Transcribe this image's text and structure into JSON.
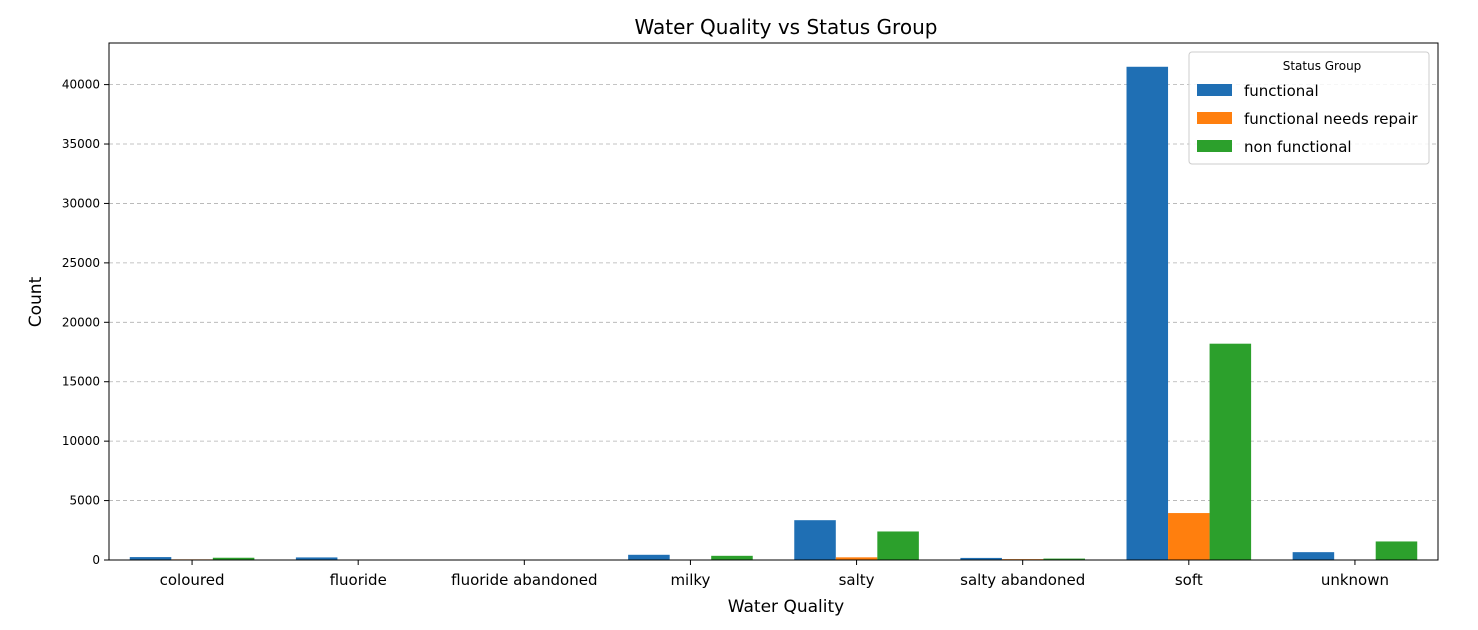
{
  "chart_data": {
    "type": "bar",
    "title": "Water Quality vs Status Group",
    "xlabel": "Water Quality",
    "ylabel": "Count",
    "categories": [
      "coloured",
      "fluoride",
      "fluoride abandoned",
      "milky",
      "salty",
      "salty abandoned",
      "soft",
      "unknown"
    ],
    "series": [
      {
        "name": "functional",
        "color": "#1f6fb4",
        "values": [
          246,
          217,
          12,
          438,
          3350,
          176,
          41500,
          660
        ]
      },
      {
        "name": "functional needs repair",
        "color": "#ff7f0e",
        "values": [
          54,
          13,
          0,
          14,
          225,
          72,
          3950,
          30
        ]
      },
      {
        "name": "non functional",
        "color": "#2ca02c",
        "values": [
          190,
          20,
          5,
          352,
          2400,
          119,
          18200,
          1560
        ]
      }
    ],
    "ylim": [
      0,
      43500
    ],
    "yticks": [
      0,
      5000,
      10000,
      15000,
      20000,
      25000,
      30000,
      35000,
      40000
    ],
    "grid": "y-dashed",
    "legend": {
      "title": "Status Group",
      "position": "top-right"
    }
  }
}
